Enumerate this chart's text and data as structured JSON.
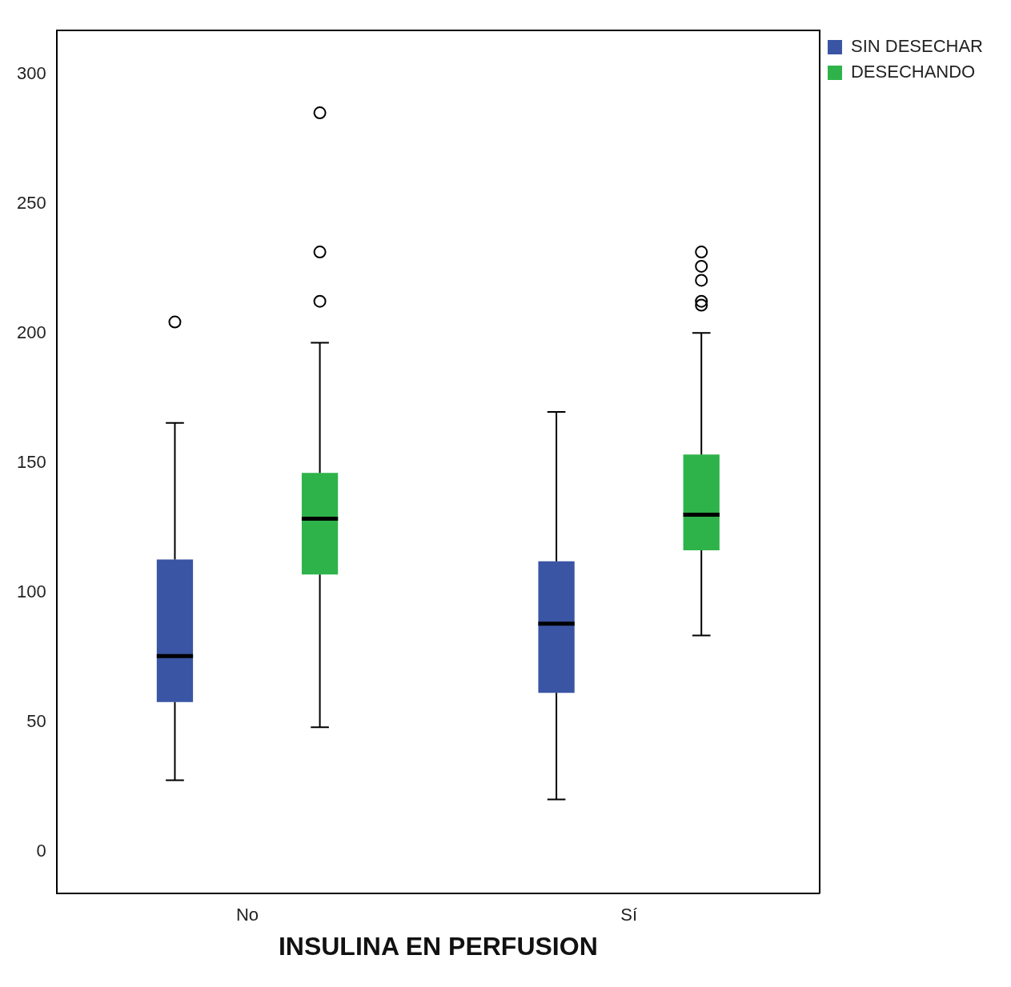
{
  "chart_data": {
    "type": "box",
    "xlabel": "INSULINA EN PERFUSION",
    "categories": [
      "No",
      "Sí"
    ],
    "series": [
      {
        "name": "SIN DESECHAR",
        "color": "#3a55a4",
        "boxes": [
          {
            "low": 27.7,
            "q1": 57.9,
            "median": 75.6,
            "q3": 112.9,
            "high": 165.6,
            "outliers": [
              204.5
            ]
          },
          {
            "low": 20.3,
            "q1": 61.4,
            "median": 88.1,
            "q3": 112.2,
            "high": 169.8
          }
        ]
      },
      {
        "name": "DESECHANDO",
        "color": "#2eb34a",
        "boxes": [
          {
            "low": 48.2,
            "q1": 107.1,
            "median": 128.6,
            "q3": 146.3,
            "high": 196.5,
            "outliers": [
              212.5,
              231.5,
              285.2
            ]
          },
          {
            "low": 83.6,
            "q1": 116.4,
            "median": 130.2,
            "q3": 153.4,
            "high": 200.3,
            "outliers": [
              211,
              212.5,
              220.6,
              226,
              231.5
            ]
          }
        ]
      }
    ],
    "ylim": [
      -16,
      317
    ],
    "yticks": [
      0,
      50,
      100,
      150,
      200,
      250,
      300
    ],
    "grid": false,
    "legend": "top right"
  }
}
